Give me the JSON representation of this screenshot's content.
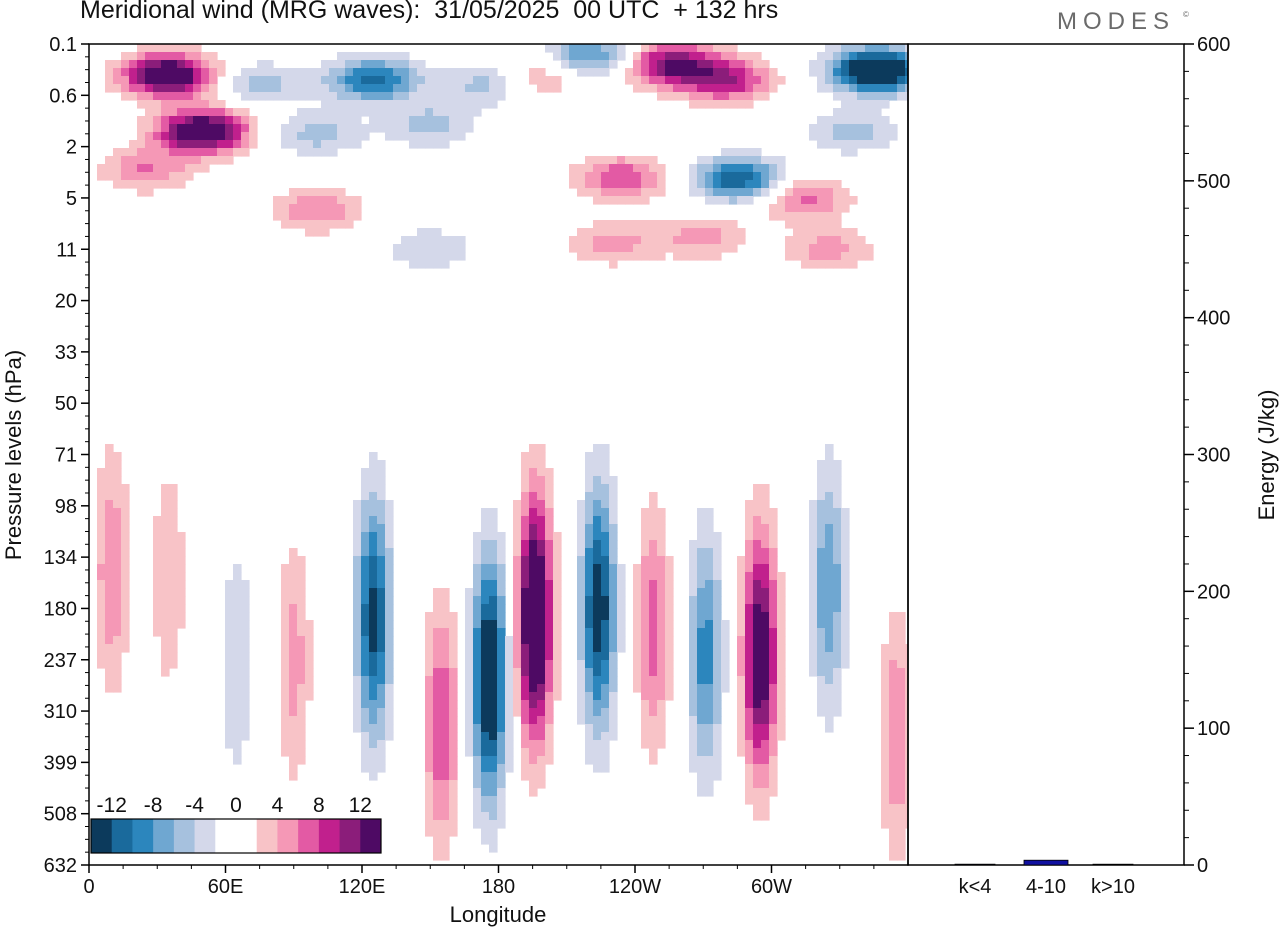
{
  "header": {
    "title": "Meridional wind (MRG waves):  31/05/2025  00 UTC  + 132 hrs",
    "brand": "MODES",
    "brand_mark": "©"
  },
  "chart_data": [
    {
      "type": "heatmap",
      "xlabel": "Longitude",
      "ylabel": "Pressure levels (hPa)",
      "x_ticks": [
        "0",
        "60E",
        "120E",
        "180",
        "120W",
        "60W"
      ],
      "x_tick_lon": [
        0,
        60,
        120,
        180,
        240,
        300
      ],
      "xlim": [
        0,
        360
      ],
      "y_ticks": [
        "0.1",
        "0.6",
        "2",
        "5",
        "11",
        "20",
        "33",
        "50",
        "71",
        "98",
        "134",
        "180",
        "237",
        "310",
        "399",
        "508",
        "632"
      ],
      "colorbar": {
        "labels": [
          "-12",
          "-8",
          "-4",
          "0",
          "4",
          "8",
          "12"
        ],
        "colors": [
          "#0c3a5c",
          "#1a6a9c",
          "#2c86bd",
          "#6fa7d1",
          "#a6c1de",
          "#d4d8ea",
          "#ffffff",
          "#ffffff",
          "#f8c3c7",
          "#f598b6",
          "#e35aa4",
          "#c1208d",
          "#8b1d7a",
          "#4e0a64"
        ]
      },
      "blobs": [
        {
          "lon": 35,
          "p": 0.3,
          "v": 16
        },
        {
          "lon": 50,
          "p": 1.4,
          "v": 16
        },
        {
          "lon": 25,
          "p": 3.0,
          "v": 6
        },
        {
          "lon": 100,
          "p": 6.0,
          "v": 6
        },
        {
          "lon": 75,
          "p": 0.4,
          "v": -5
        },
        {
          "lon": 125,
          "p": 0.35,
          "v": -11
        },
        {
          "lon": 100,
          "p": 1.5,
          "v": -5
        },
        {
          "lon": 150,
          "p": 1.2,
          "v": -5
        },
        {
          "lon": 175,
          "p": 0.4,
          "v": -5
        },
        {
          "lon": 220,
          "p": 0.15,
          "v": -9
        },
        {
          "lon": 200,
          "p": 0.3,
          "v": 5
        },
        {
          "lon": 255,
          "p": 0.2,
          "v": 12
        },
        {
          "lon": 280,
          "p": 0.35,
          "v": 10
        },
        {
          "lon": 346,
          "p": 0.25,
          "v": -18
        },
        {
          "lon": 234,
          "p": 3.5,
          "v": 8
        },
        {
          "lon": 286,
          "p": 3.6,
          "v": -12
        },
        {
          "lon": 314,
          "p": 5.0,
          "v": 7
        },
        {
          "lon": 335,
          "p": 1.4,
          "v": -5
        },
        {
          "lon": 270,
          "p": 9.0,
          "v": 5
        },
        {
          "lon": 150,
          "p": 11.0,
          "v": -4
        },
        {
          "lon": 230,
          "p": 10.0,
          "v": 5
        },
        {
          "lon": 325,
          "p": 11.0,
          "v": 5
        },
        {
          "lon": 10,
          "p": 145,
          "v": 6
        },
        {
          "lon": 35,
          "p": 150,
          "v": 4
        },
        {
          "lon": 65,
          "p": 240,
          "v": -4
        },
        {
          "lon": 90,
          "p": 240,
          "v": 5
        },
        {
          "lon": 125,
          "p": 190,
          "v": -13
        },
        {
          "lon": 155,
          "p": 330,
          "v": 8
        },
        {
          "lon": 176,
          "p": 260,
          "v": -16
        },
        {
          "lon": 196,
          "p": 190,
          "v": 18
        },
        {
          "lon": 224,
          "p": 180,
          "v": -14
        },
        {
          "lon": 248,
          "p": 200,
          "v": 7
        },
        {
          "lon": 271,
          "p": 230,
          "v": -9
        },
        {
          "lon": 295,
          "p": 230,
          "v": 15
        },
        {
          "lon": 325,
          "p": 160,
          "v": -8
        },
        {
          "lon": 355,
          "p": 350,
          "v": 6
        }
      ]
    },
    {
      "type": "bar",
      "categories": [
        "k<4",
        "4-10",
        "k>10"
      ],
      "values": [
        0.6,
        3.5,
        0.3
      ],
      "ylabel": "Energy (J/kg)",
      "ylim": [
        0,
        600
      ],
      "y_ticks": [
        "0",
        "100",
        "200",
        "300",
        "400",
        "500",
        "600"
      ],
      "bar_color": "#1010a0"
    }
  ]
}
